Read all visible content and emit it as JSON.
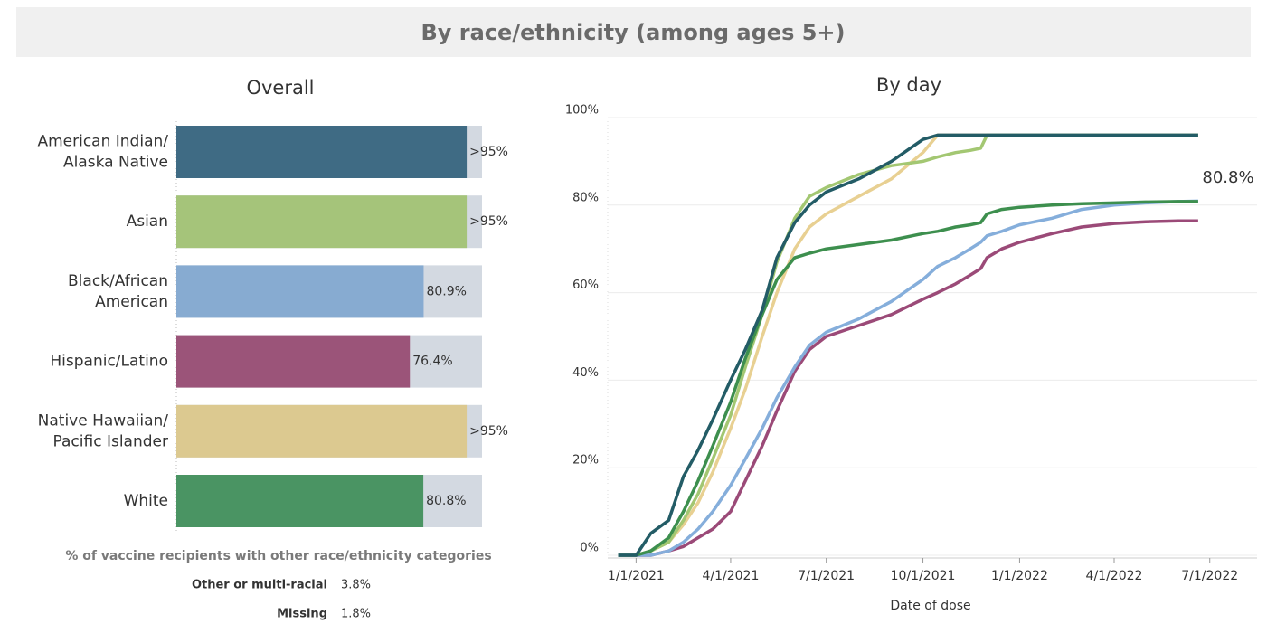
{
  "header": {
    "title": "By race/ethnicity (among ages 5+)"
  },
  "chart_data": [
    {
      "type": "bar",
      "title": "Overall",
      "categories": [
        "American Indian/\nAlaska Native",
        "Asian",
        "Black/African\nAmerican",
        "Hispanic/Latino",
        "Native Hawaiian/\nPacific Islander",
        "White"
      ],
      "values": [
        95,
        95,
        80.9,
        76.4,
        95,
        80.8
      ],
      "value_labels": [
        ">95%",
        ">95%",
        "80.9%",
        "76.4%",
        ">95%",
        "80.8%"
      ],
      "colors": [
        "#3f6b84",
        "#a5c47a",
        "#87abd1",
        "#9b5479",
        "#dcc990",
        "#4a9463"
      ],
      "background_color": "#d3d9e1",
      "xlim": [
        0,
        100
      ]
    },
    {
      "type": "line",
      "title": "By day",
      "xlabel": "Date of dose",
      "x": [
        "2020-12-15",
        "2021-01-01",
        "2021-01-15",
        "2021-02-01",
        "2021-02-15",
        "2021-03-01",
        "2021-03-15",
        "2021-04-01",
        "2021-04-15",
        "2021-05-01",
        "2021-05-15",
        "2021-06-01",
        "2021-06-15",
        "2021-07-01",
        "2021-08-01",
        "2021-09-01",
        "2021-10-01",
        "2021-10-15",
        "2021-11-01",
        "2021-11-15",
        "2021-11-25",
        "2021-12-01",
        "2021-12-15",
        "2022-01-01",
        "2022-02-01",
        "2022-03-01",
        "2022-04-01",
        "2022-05-01",
        "2022-06-01",
        "2022-06-20"
      ],
      "series": [
        {
          "name": "Native Hawaiian/Pacific Islander",
          "color": "#e8d092",
          "values": [
            0,
            0,
            1,
            3,
            7,
            12,
            19,
            29,
            38,
            50,
            60,
            70,
            75,
            78,
            82,
            86,
            92,
            96,
            96,
            96,
            96,
            96,
            96,
            96,
            96,
            96,
            96,
            96,
            96,
            96
          ]
        },
        {
          "name": "Asian",
          "color": "#a3c772",
          "values": [
            0,
            0,
            1,
            3,
            8,
            14,
            22,
            32,
            43,
            55,
            67,
            77,
            82,
            84,
            87,
            89,
            90,
            91,
            92,
            92.5,
            93,
            96,
            96,
            96,
            96,
            96,
            96,
            96,
            96,
            96
          ]
        },
        {
          "name": "Hispanic/Latino",
          "color": "#9b4a78",
          "values": [
            0,
            0,
            0,
            1,
            2,
            4,
            6,
            10,
            17,
            25,
            33,
            42,
            47,
            50,
            52.5,
            55,
            58.5,
            60,
            62,
            64,
            65.5,
            68,
            70,
            71.5,
            73.5,
            75,
            75.8,
            76.2,
            76.4,
            76.4
          ]
        },
        {
          "name": "Black/African American",
          "color": "#85aedb",
          "values": [
            0,
            0,
            0,
            1,
            3,
            6,
            10,
            16,
            22,
            29,
            36,
            43,
            48,
            51,
            54,
            58,
            63,
            66,
            68,
            70,
            71.5,
            73,
            74,
            75.5,
            77,
            79,
            80,
            80.5,
            80.8,
            80.9
          ]
        },
        {
          "name": "White",
          "color": "#3d8f4e",
          "end_label": "80.8%",
          "values": [
            0,
            0,
            1,
            4,
            10,
            17,
            25,
            35,
            45,
            55,
            63,
            68,
            69,
            70,
            71,
            72,
            73.5,
            74,
            75,
            75.5,
            76,
            78,
            79,
            79.5,
            80,
            80.3,
            80.5,
            80.7,
            80.8,
            80.8
          ]
        },
        {
          "name": "American Indian/Alaska Native",
          "color": "#235c66",
          "values": [
            0,
            0,
            5,
            8,
            18,
            24,
            31,
            40,
            47,
            56,
            68,
            76,
            80,
            83,
            86,
            90,
            95,
            96,
            96,
            96,
            96,
            96,
            96,
            96,
            96,
            96,
            96,
            96,
            96,
            96
          ]
        }
      ],
      "xlim": [
        "2020-12-05",
        "2022-08-15"
      ],
      "xticks": [
        {
          "value": "2021-01-01",
          "label": "1/1/2021"
        },
        {
          "value": "2021-04-01",
          "label": "4/1/2021"
        },
        {
          "value": "2021-07-01",
          "label": "7/1/2021"
        },
        {
          "value": "2021-10-01",
          "label": "10/1/2021"
        },
        {
          "value": "2022-01-01",
          "label": "1/1/2022"
        },
        {
          "value": "2022-04-01",
          "label": "4/1/2022"
        },
        {
          "value": "2022-07-01",
          "label": "7/1/2022"
        }
      ],
      "ylim": [
        0,
        100
      ],
      "yticks": [
        {
          "value": 0,
          "label": "0%"
        },
        {
          "value": 20,
          "label": "20%"
        },
        {
          "value": 40,
          "label": "40%"
        },
        {
          "value": 60,
          "label": "60%"
        },
        {
          "value": 80,
          "label": "80%"
        },
        {
          "value": 100,
          "label": "100%"
        }
      ],
      "grid": true
    }
  ],
  "other_categories": {
    "title": "% of vaccine recipients with other race/ethnicity categories",
    "rows": [
      [
        "Other or multi-racial",
        "3.8%"
      ],
      [
        "Missing",
        "1.8%"
      ]
    ]
  }
}
